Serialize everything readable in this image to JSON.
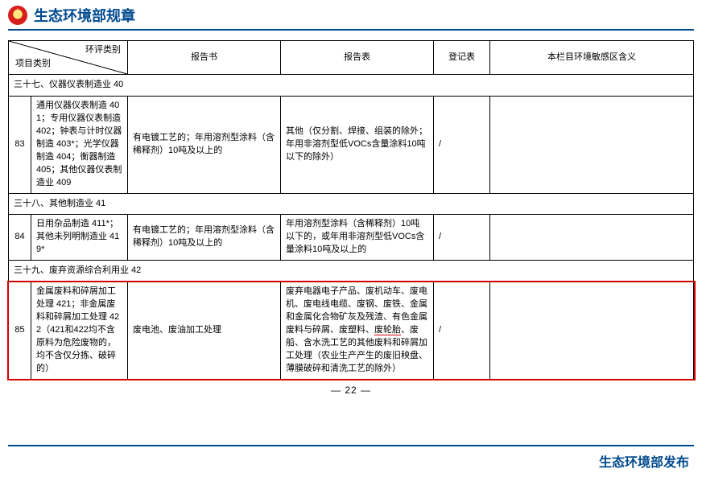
{
  "header": {
    "title": "生态环境部规章"
  },
  "table": {
    "head": {
      "diag_top": "环评类别",
      "diag_bottom": "项目类别",
      "c3": "报告书",
      "c4": "报告表",
      "c5": "登记表",
      "c6": "本栏目环境敏感区含义"
    },
    "section37": {
      "title": "三十七、仪器仪表制造业 40"
    },
    "row83": {
      "num": "83",
      "item": "通用仪器仪表制造 401；专用仪器仪表制造 402；钟表与计时仪器制造 403*；光学仪器制造 404；衡器制造 405；其他仪器仪表制造业 409",
      "c3": "有电镀工艺的；年用溶剂型涂料（含稀释剂）10吨及以上的",
      "c4": "其他（仅分割、焊接、组装的除外；年用非溶剂型低VOCs含量涂料10吨以下的除外）",
      "c5": "/",
      "c6": ""
    },
    "section38": {
      "title": "三十八、其他制造业 41"
    },
    "row84": {
      "num": "84",
      "item": "日用杂品制造 411*；其他未列明制造业 419*",
      "c3": "有电镀工艺的；年用溶剂型涂料（含稀释剂）10吨及以上的",
      "c4": "年用溶剂型涂料（含稀释剂）10吨以下的，或年用非溶剂型低VOCs含量涂料10吨及以上的",
      "c5": "/",
      "c6": ""
    },
    "section39": {
      "title": "三十九、废弃资源综合利用业 42"
    },
    "row85": {
      "num": "85",
      "item": "金属废料和碎屑加工处理 421；非金属废料和碎屑加工处理 422（421和422均不含原料为危险废物的，均不含仅分拣、破碎的）",
      "c3": "废电池、废油加工处理",
      "c4_pre": "废弃电器电子产品、废机动车、废电机、废电线电缆、废钢、废铁、金属和金属化合物矿灰及残渣、有色金属废料与碎屑、废塑料、",
      "c4_hl": "废轮胎",
      "c4_post": "、废船、含水洗工艺的其他废料和碎屑加工处理（农业生产产生的废旧秧盘、薄膜破碎和清洗工艺的除外）",
      "c5": "/",
      "c6": ""
    }
  },
  "page_number": "— 22 —",
  "footer": {
    "text": "生态环境部发布"
  },
  "colors": {
    "brand_blue": "#004a8f",
    "highlight_red": "#d40000"
  }
}
